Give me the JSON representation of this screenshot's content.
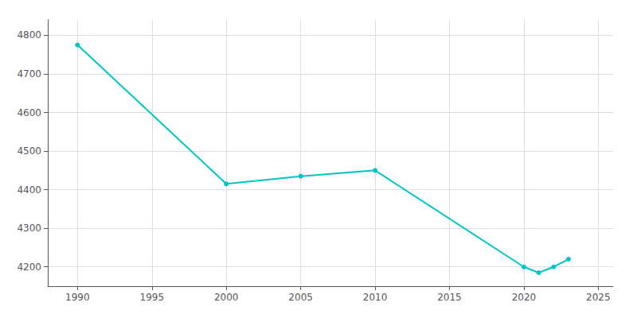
{
  "chart_data": {
    "type": "line",
    "x": [
      1990,
      2000,
      2005,
      2010,
      2020,
      2021,
      2022,
      2023
    ],
    "values": [
      4775,
      4415,
      4435,
      4450,
      4200,
      4185,
      4200,
      4220
    ],
    "color": "#00C5C5",
    "marker": "circle",
    "xlim": [
      1988,
      2026
    ],
    "ylim": [
      4150,
      4840
    ],
    "xticks": [
      1990,
      1995,
      2000,
      2005,
      2010,
      2015,
      2020,
      2025
    ],
    "yticks": [
      4200,
      4300,
      4400,
      4500,
      4600,
      4700,
      4800
    ],
    "grid": true
  }
}
